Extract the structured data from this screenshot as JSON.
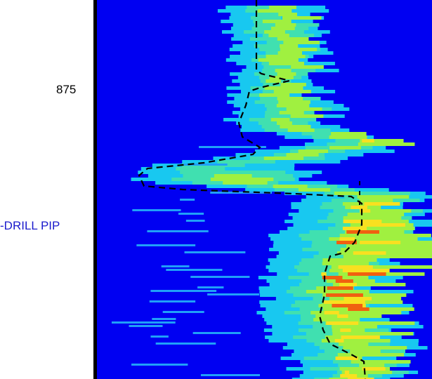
{
  "depth_label": "875",
  "track_label": "-DRILL PIP"
}
